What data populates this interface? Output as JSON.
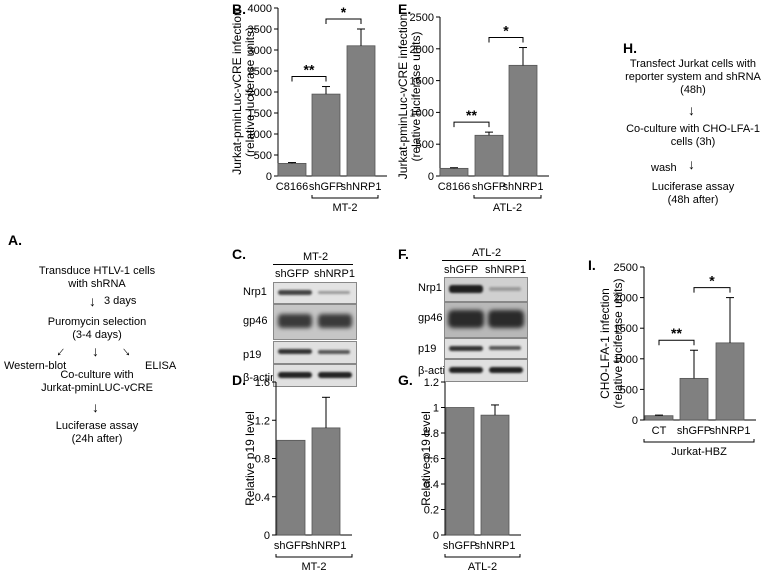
{
  "panels": {
    "A": {
      "label": "A.",
      "steps": [
        "Transduce HTLV-1 cells",
        "with shRNA",
        "3 days",
        "Puromycin selection",
        "(3-4 days)",
        "Western-blot",
        "ELISA",
        "Co-culture with",
        "Jurkat-pminLUC-vCRE",
        "Luciferase assay",
        "(24h after)"
      ]
    },
    "B": {
      "label": "B."
    },
    "C": {
      "label": "C.",
      "group": "MT-2",
      "lanes": [
        "shGFP",
        "shNRP1"
      ],
      "rows": [
        "Nrp1",
        "gp46",
        "p19",
        "β-actin"
      ]
    },
    "D": {
      "label": "D."
    },
    "E": {
      "label": "E."
    },
    "F": {
      "label": "F.",
      "group": "ATL-2",
      "lanes": [
        "shGFP",
        "shNRP1"
      ],
      "rows": [
        "Nrp1",
        "gp46",
        "p19",
        "β-actin"
      ]
    },
    "G": {
      "label": "G."
    },
    "H": {
      "label": "H.",
      "steps": [
        "Transfect Jurkat cells with",
        "reporter system and shRNA",
        "(48h)",
        "Co-culture with CHO-LFA-1",
        "cells (3h)",
        "wash",
        "Luciferase assay",
        "(48h after)"
      ]
    },
    "I": {
      "label": "I."
    }
  },
  "chart_data": [
    {
      "id": "B",
      "type": "bar",
      "categories": [
        "C8166",
        "shGFP",
        "shNRP1"
      ],
      "values": [
        300,
        1950,
        3100
      ],
      "errors": [
        20,
        180,
        400
      ],
      "ylabel": [
        "Jurkat-pminLuc-vCRE infection",
        "(relative luciferase units)"
      ],
      "ylim": [
        0,
        4000
      ],
      "yticks": [
        "0",
        "500",
        "1000",
        "1500",
        "2000",
        "2500",
        "3000",
        "3500",
        "4000"
      ],
      "group": "MT-2",
      "significance": [
        "**",
        "*"
      ]
    },
    {
      "id": "E",
      "type": "bar",
      "categories": [
        "C8166",
        "shGFP",
        "shNRP1"
      ],
      "values": [
        120,
        640,
        1740
      ],
      "errors": [
        10,
        50,
        280
      ],
      "ylabel": [
        "Jurkat-pminLuc-vCRE infection",
        "(relative luciferase units)"
      ],
      "ylim": [
        0,
        2500
      ],
      "yticks": [
        "0",
        "500",
        "1000",
        "1500",
        "2000",
        "2500"
      ],
      "group": "ATL-2",
      "significance": [
        "**",
        "*"
      ]
    },
    {
      "id": "D",
      "type": "bar",
      "categories": [
        "shGFP",
        "shNRP1"
      ],
      "values": [
        0.99,
        1.12
      ],
      "errors": [
        0,
        0.32
      ],
      "ylabel": [
        "Relative p19 level"
      ],
      "ylim": [
        0,
        1.6
      ],
      "yticks": [
        "0",
        "0.4",
        "0.8",
        "1.2",
        "1.6"
      ],
      "group": "MT-2",
      "significance": []
    },
    {
      "id": "G",
      "type": "bar",
      "categories": [
        "shGFP",
        "shNRP1"
      ],
      "values": [
        1.0,
        0.94
      ],
      "errors": [
        0,
        0.08
      ],
      "ylabel": [
        "Relative p19 level"
      ],
      "ylim": [
        0,
        1.2
      ],
      "yticks": [
        "0",
        "0.2",
        "0.4",
        "0.6",
        "0.8",
        "1",
        "1.2"
      ],
      "group": "ATL-2",
      "significance": []
    },
    {
      "id": "I",
      "type": "bar",
      "categories": [
        "CT",
        "shGFP",
        "shNRP1"
      ],
      "values": [
        70,
        680,
        1260
      ],
      "errors": [
        10,
        460,
        740
      ],
      "ylabel": [
        "CHO-LFA-1 infection",
        "(relative luciferase units)"
      ],
      "ylim": [
        0,
        2500
      ],
      "yticks": [
        "0",
        "500",
        "1000",
        "1500",
        "2000",
        "2500"
      ],
      "group": "Jurkat-HBZ",
      "significance": [
        "**",
        "*"
      ]
    }
  ],
  "colors": {
    "bar": "#808080",
    "bar_edge": "#555555",
    "axis": "#000000"
  }
}
